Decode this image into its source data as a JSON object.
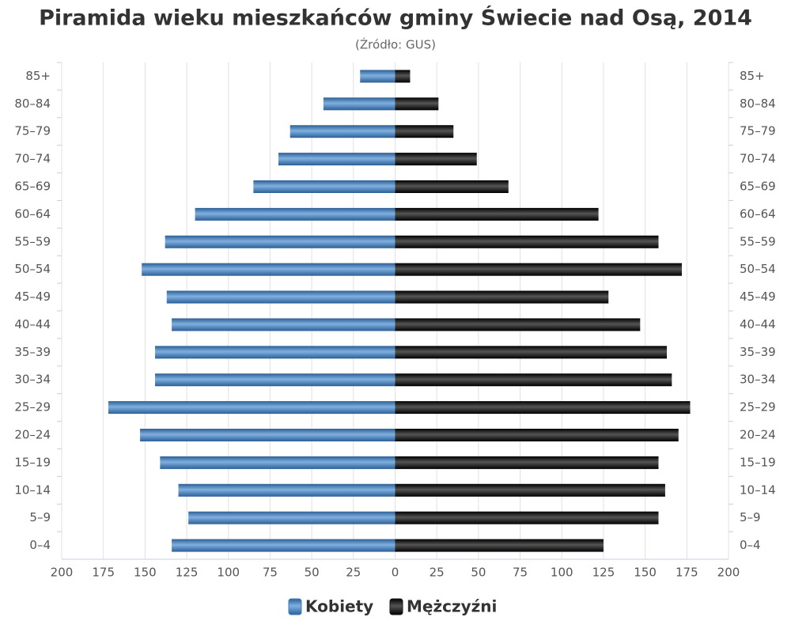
{
  "chart_data": {
    "type": "pyramid",
    "title": "Piramida wieku mieszkańców gminy Świecie nad Osą, 2014",
    "subtitle": "(Źródło: GUS)",
    "categories": [
      "85+",
      "80–84",
      "75–79",
      "70–74",
      "65–69",
      "60–64",
      "55–59",
      "50–54",
      "45–49",
      "40–44",
      "35–39",
      "30–34",
      "25–29",
      "20–24",
      "15–19",
      "10–14",
      "5–9",
      "0–4"
    ],
    "series": [
      {
        "name": "Kobiety",
        "color": "#3f7fc0",
        "values": [
          -21,
          -43,
          -63,
          -70,
          -85,
          -120,
          -138,
          -152,
          -137,
          -134,
          -144,
          -144,
          -172,
          -153,
          -141,
          -130,
          -124,
          -134
        ]
      },
      {
        "name": "Mężczyźni",
        "color": "#1a1a1a",
        "values": [
          9,
          26,
          35,
          49,
          68,
          122,
          158,
          172,
          128,
          147,
          163,
          166,
          177,
          170,
          158,
          162,
          158,
          125
        ]
      }
    ],
    "xlim": [
      -200,
      200
    ],
    "xticks": [
      {
        "value": -200,
        "label": "200"
      },
      {
        "value": -175,
        "label": "175"
      },
      {
        "value": -150,
        "label": "150"
      },
      {
        "value": -125,
        "label": "125"
      },
      {
        "value": -100,
        "label": "100"
      },
      {
        "value": -75,
        "label": "75"
      },
      {
        "value": -50,
        "label": "50"
      },
      {
        "value": -25,
        "label": "25"
      },
      0,
      25,
      50,
      75,
      100,
      125,
      150,
      175,
      200
    ],
    "grid": true
  }
}
